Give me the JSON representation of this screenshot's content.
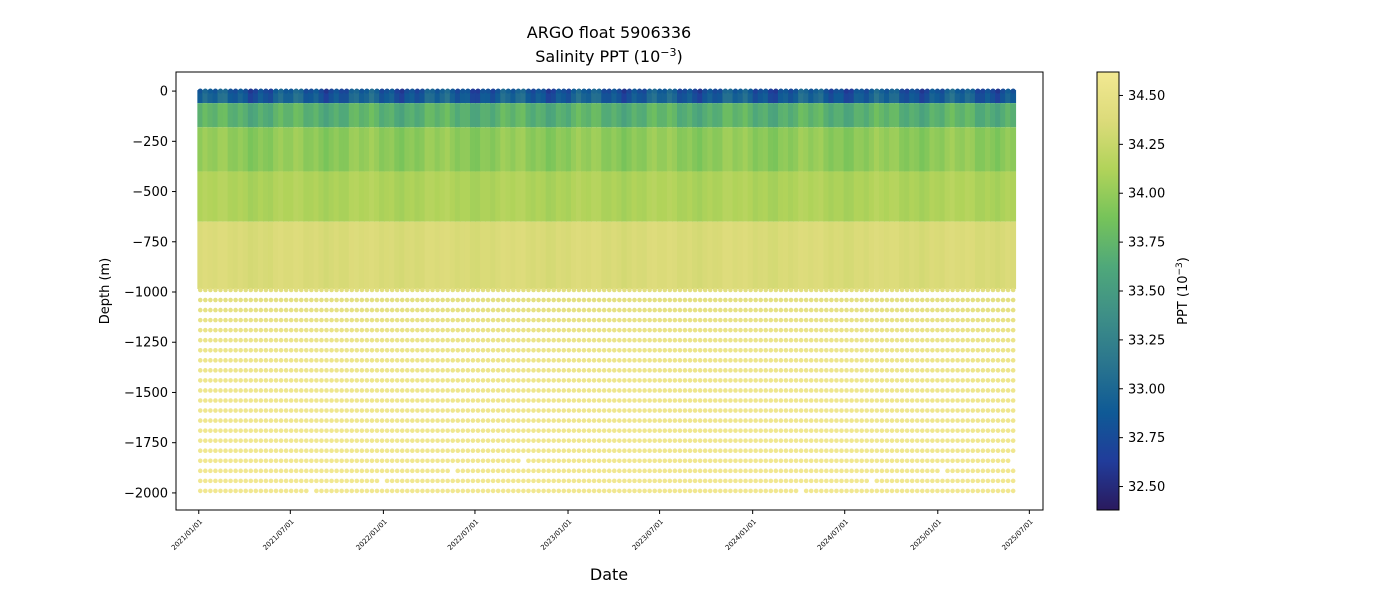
{
  "chart_data": {
    "type": "scatter",
    "title": "ARGO float 5906336",
    "subtitle_base": "Salinity PPT (10",
    "subtitle_exp": "−3",
    "subtitle_end": ")",
    "xlabel": "Date",
    "ylabel": "Depth (m)",
    "colorbar_label_base": "PPT (10",
    "colorbar_label_exp": "−3",
    "colorbar_label_end": ")",
    "colormap": "haline",
    "colormap_stops": [
      "#2a1a5e",
      "#213c9a",
      "#0f5a96",
      "#2a758e",
      "#3e8f87",
      "#4fa87a",
      "#76c35a",
      "#b1d35a",
      "#dcdb7a",
      "#f2e892"
    ],
    "x_ticks": [
      "2021/01/01",
      "2021/07/01",
      "2022/01/01",
      "2022/07/01",
      "2023/01/01",
      "2023/07/01",
      "2024/01/01",
      "2024/07/01",
      "2025/01/01",
      "2025/07/01"
    ],
    "y_ticks": [
      0,
      -250,
      -500,
      -750,
      -1000,
      -1250,
      -1500,
      -1750,
      -2000
    ],
    "y_tick_labels": [
      "0",
      "−250",
      "−500",
      "−750",
      "−1000",
      "−1250",
      "−1500",
      "−1750",
      "−2000"
    ],
    "ylim": [
      -2085,
      95
    ],
    "xlim": [
      "2020-11-17",
      "2025-07-28"
    ],
    "data_range_dates": [
      "2021-01-04",
      "2025-05-30"
    ],
    "colorbar_ticks": [
      32.5,
      32.75,
      33.0,
      33.25,
      33.5,
      33.75,
      34.0,
      34.25,
      34.5
    ],
    "colorbar_tick_labels": [
      "32.50",
      "32.75",
      "33.00",
      "33.25",
      "33.50",
      "33.75",
      "34.00",
      "34.25",
      "34.50"
    ],
    "colorbar_range": [
      32.38,
      34.62
    ],
    "salinity_profile": [
      {
        "depth": 0,
        "value": 32.9
      },
      {
        "depth": -50,
        "value": 33.0
      },
      {
        "depth": -100,
        "value": 33.3
      },
      {
        "depth": -150,
        "value": 33.7
      },
      {
        "depth": -250,
        "value": 33.95
      },
      {
        "depth": -500,
        "value": 34.1
      },
      {
        "depth": -750,
        "value": 34.3
      },
      {
        "depth": -1000,
        "value": 34.45
      },
      {
        "depth": -1250,
        "value": 34.55
      },
      {
        "depth": -1500,
        "value": 34.58
      },
      {
        "depth": -1750,
        "value": 34.6
      },
      {
        "depth": -2000,
        "value": 34.61
      }
    ]
  }
}
